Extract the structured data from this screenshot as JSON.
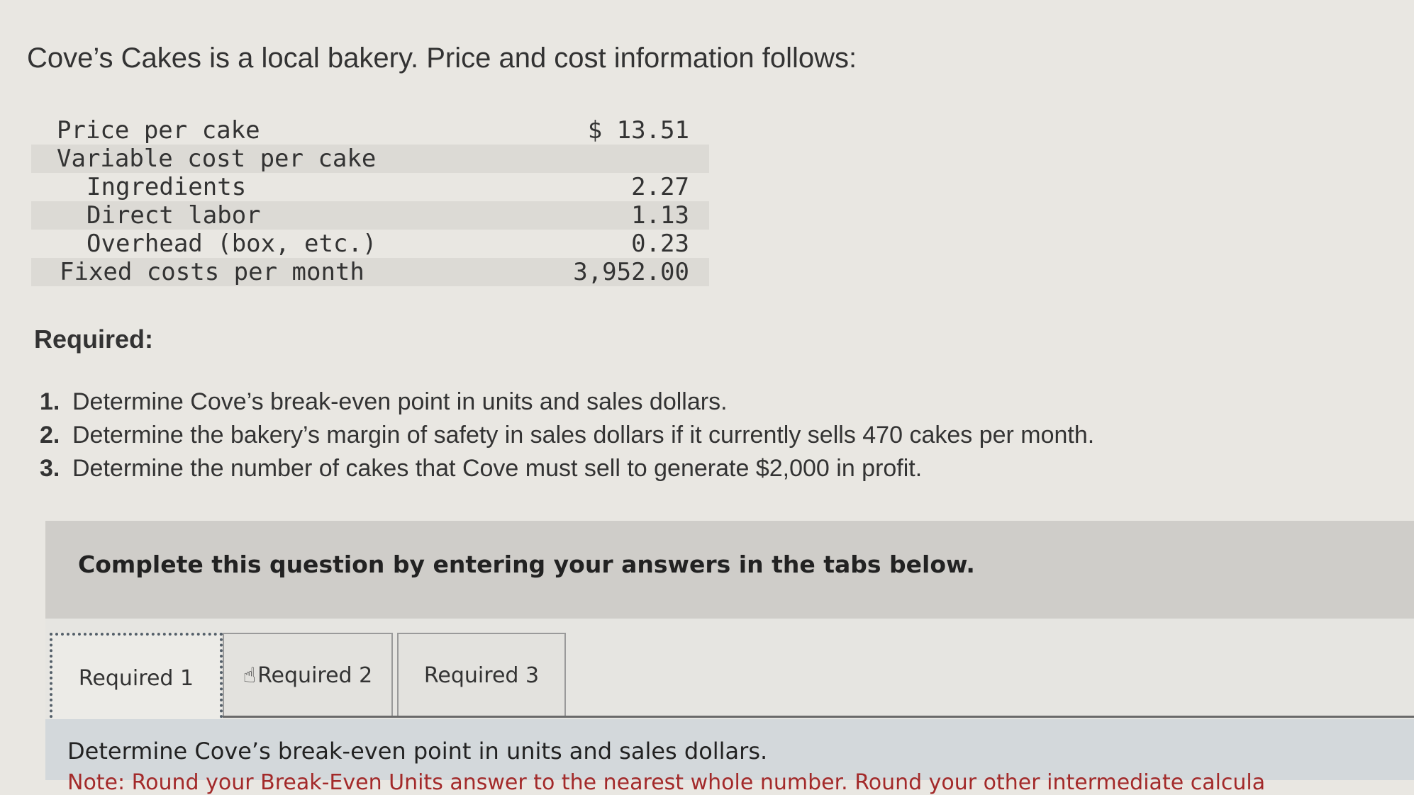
{
  "intro": "Cove’s Cakes is a local bakery. Price and cost information follows:",
  "table": [
    {
      "label": "Price per cake",
      "value": "$ 13.51"
    },
    {
      "label": "Variable cost per cake",
      "value": ""
    },
    {
      "label": "Ingredients",
      "value": "2.27"
    },
    {
      "label": "Direct labor",
      "value": "1.13"
    },
    {
      "label": "Overhead (box, etc.)",
      "value": "0.23"
    },
    {
      "label": "Fixed costs per month",
      "value": "3,952.00"
    }
  ],
  "required_heading": "Required:",
  "requirements": [
    {
      "num": "1.",
      "text": "Determine Cove’s break-even point in units and sales dollars."
    },
    {
      "num": "2.",
      "text": "Determine the bakery’s margin of safety in sales dollars if it currently sells 470 cakes per month."
    },
    {
      "num": "3.",
      "text": "Determine the number of cakes that Cove must sell to generate $2,000 in profit."
    }
  ],
  "banner": "Complete this question by entering your answers in the tabs below.",
  "tabs": [
    {
      "label": "Required 1",
      "active": true
    },
    {
      "label": "Required 2",
      "active": false
    },
    {
      "label": "Required 3",
      "active": false
    }
  ],
  "panel": {
    "question": "Determine Cove’s break-even point in units and sales dollars.",
    "note": "Note: Round your Break-Even Units answer to the nearest whole number. Round your other intermediate calcula"
  },
  "cursor_icon": "hand-pointer"
}
